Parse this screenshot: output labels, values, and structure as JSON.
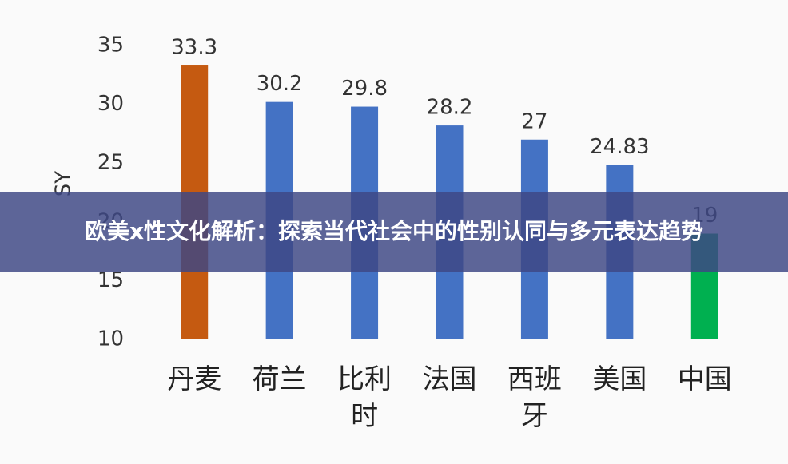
{
  "overlay_title": "欧美x性文化解析：探索当代社会中的性别认同与多元表达趋势",
  "chart_data": {
    "type": "bar",
    "y_label": "SY",
    "categories": [
      "丹麦",
      "荷兰",
      "比利时",
      "法国",
      "西班牙",
      "美国",
      "中国"
    ],
    "values": [
      33.3,
      30.2,
      29.8,
      28.2,
      27,
      24.83,
      19
    ],
    "colors": [
      "#c55a11",
      "#4472c4",
      "#4472c4",
      "#4472c4",
      "#4472c4",
      "#4472c4",
      "#00b050"
    ],
    "ylim": [
      10,
      35
    ],
    "yticks": [
      10,
      15,
      20,
      25,
      30,
      35
    ],
    "grid": false
  }
}
